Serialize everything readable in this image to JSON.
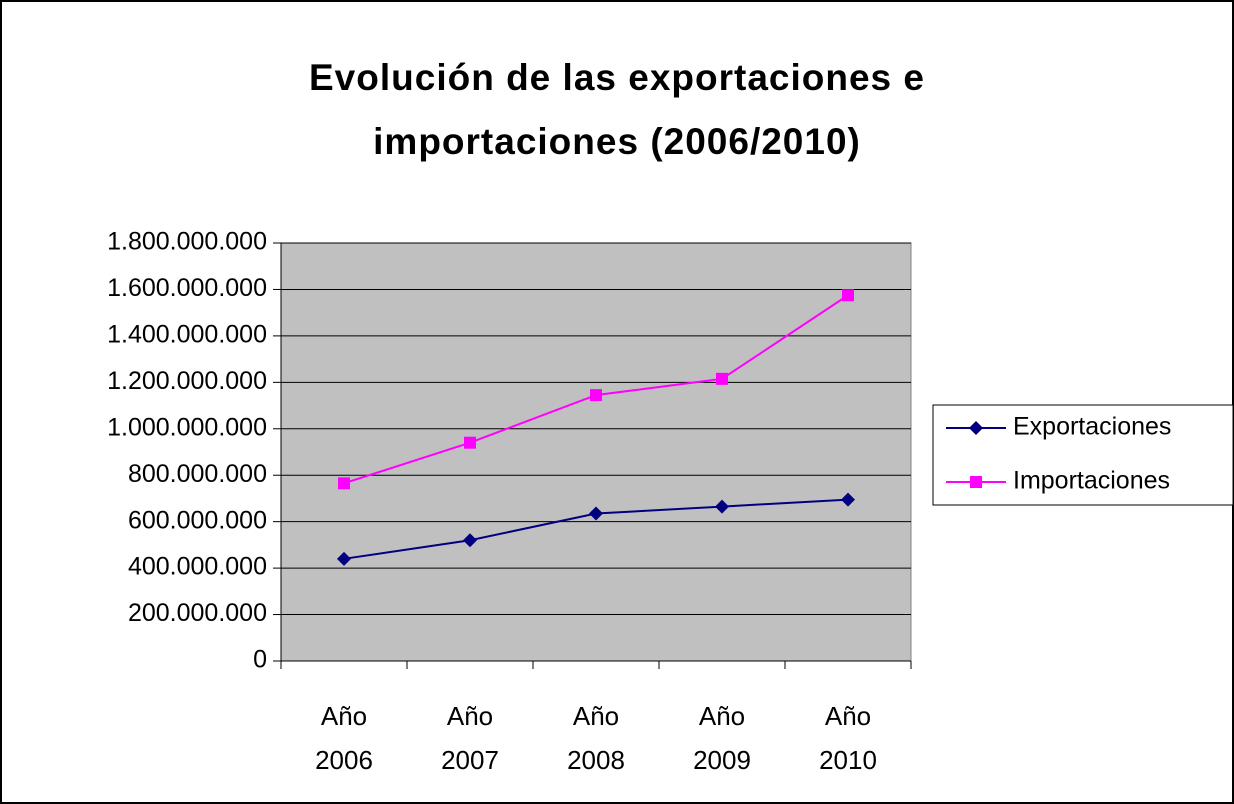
{
  "chart_data": {
    "type": "line",
    "title": "Evolución de las exportaciones e importaciones (2006/2010)",
    "categories": [
      "Año 2006",
      "Año 2007",
      "Año 2008",
      "Año 2009",
      "Año 2010"
    ],
    "series": [
      {
        "name": "Exportaciones",
        "color": "#000080",
        "marker": "diamond",
        "values": [
          440000000,
          520000000,
          635000000,
          665000000,
          695000000
        ]
      },
      {
        "name": "Importaciones",
        "color": "#ff00ff",
        "marker": "square",
        "values": [
          765000000,
          940000000,
          1145000000,
          1215000000,
          1575000000
        ]
      }
    ],
    "ylim": [
      0,
      1800000000
    ],
    "yticks": [
      0,
      {
        "value": 200000000,
        "label": "200.000.000"
      },
      {
        "value": 400000000,
        "label": "400.000.000"
      },
      {
        "value": 600000000,
        "label": "600.000.000"
      },
      {
        "value": 800000000,
        "label": "800.000.000"
      },
      {
        "value": 1000000000,
        "label": "1.000.000.000"
      },
      {
        "value": 1200000000,
        "label": "1.200.000.000"
      },
      {
        "value": 1400000000,
        "label": "1.400.000.000"
      },
      {
        "value": 1600000000,
        "label": "1.600.000.000"
      },
      {
        "value": 1800000000,
        "label": "1.800.000.000"
      }
    ],
    "grid": true,
    "plot_background": "#c0c0c0",
    "legend": "right"
  }
}
